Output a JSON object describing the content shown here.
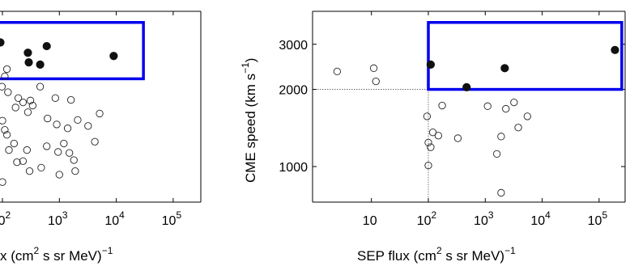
{
  "chart_data": [
    {
      "type": "scatter",
      "title": "",
      "xscale": "log",
      "yscale": "log",
      "xlabel_parts": [
        "x  (cm",
        "2",
        " s sr MeV)",
        "−1"
      ],
      "ylabel": "",
      "xticks": [
        {
          "base": "10",
          "exp": "2"
        },
        {
          "base": "10",
          "exp": "3"
        },
        {
          "base": "10",
          "exp": "4"
        },
        {
          "base": "10",
          "exp": "5"
        }
      ],
      "xlim": [
        85,
        260000
      ],
      "ylim": [
        700,
        3800
      ],
      "highlight_box": {
        "x": [
          85,
          30000
        ],
        "y": [
          2200,
          3650
        ],
        "color": "#0000ee"
      },
      "series": [
        {
          "marker": "filled",
          "points": [
            [
              92,
              3050
            ],
            [
              280,
              2780
            ],
            [
              290,
              2550
            ],
            [
              460,
              2500
            ],
            [
              600,
              2950
            ],
            [
              9000,
              2700
            ]
          ]
        },
        {
          "marker": "open",
          "points": [
            [
              98,
              2050
            ],
            [
              110,
              2250
            ],
            [
              120,
              2400
            ],
            [
              125,
              1950
            ],
            [
              170,
              1700
            ],
            [
              190,
              1850
            ],
            [
              230,
              1780
            ],
            [
              280,
              1630
            ],
            [
              310,
              1810
            ],
            [
              340,
              1730
            ],
            [
              460,
              2050
            ],
            [
              620,
              1540
            ],
            [
              850,
              1850
            ],
            [
              900,
              1460
            ],
            [
              1400,
              1410
            ],
            [
              1600,
              1820
            ],
            [
              2100,
              1520
            ],
            [
              5100,
              1610
            ],
            [
              3200,
              1440
            ],
            [
              100,
              1510
            ],
            [
              110,
              1390
            ],
            [
              120,
              1330
            ],
            [
              130,
              1160
            ],
            [
              160,
              1230
            ],
            [
              180,
              1040
            ],
            [
              230,
              1050
            ],
            [
              270,
              1160
            ],
            [
              300,
              960
            ],
            [
              480,
              990
            ],
            [
              600,
              1200
            ],
            [
              950,
              1140
            ],
            [
              1000,
              930
            ],
            [
              1200,
              1230
            ],
            [
              1500,
              1130
            ],
            [
              1800,
              1060
            ],
            [
              1900,
              960
            ],
            [
              4200,
              1250
            ],
            [
              100,
              870
            ]
          ]
        }
      ]
    },
    {
      "type": "scatter",
      "title": "",
      "xscale": "log",
      "yscale": "log",
      "xlabel_parts": [
        "SEP  flux  (cm",
        "2",
        " s sr MeV)",
        "−1"
      ],
      "ylabel_parts": [
        "CME  speed  (km s",
        "−1",
        ")"
      ],
      "xticks": [
        {
          "base": "10",
          "exp": ""
        },
        {
          "base": "10",
          "exp": "2"
        },
        {
          "base": "10",
          "exp": "3"
        },
        {
          "base": "10",
          "exp": "4"
        },
        {
          "base": "10",
          "exp": "5"
        }
      ],
      "yticks": [
        "1000",
        "2000",
        "3000"
      ],
      "xlim": [
        1,
        260000
      ],
      "ylim": [
        700,
        3800
      ],
      "reference_lines": {
        "x": 100,
        "y": 2000
      },
      "highlight_box": {
        "x": [
          100,
          250000
        ],
        "y": [
          2000,
          3650
        ],
        "color": "#0000ee"
      },
      "series": [
        {
          "marker": "filled",
          "points": [
            [
              110,
              2500
            ],
            [
              470,
              2040
            ],
            [
              2200,
              2420
            ],
            [
              190000,
              2850
            ]
          ]
        },
        {
          "marker": "open",
          "points": [
            [
              2.5,
              2350
            ],
            [
              11,
              2420
            ],
            [
              12,
              2150
            ],
            [
              95,
              1570
            ],
            [
              120,
              1360
            ],
            [
              150,
              1320
            ],
            [
              175,
              1730
            ],
            [
              330,
              1290
            ],
            [
              1100,
              1720
            ],
            [
              1600,
              1120
            ],
            [
              1900,
              1310
            ],
            [
              2300,
              1680
            ],
            [
              3200,
              1780
            ],
            [
              3800,
              1420
            ],
            [
              5500,
              1570
            ],
            [
              100,
              1240
            ],
            [
              110,
              1190
            ],
            [
              100,
              1010
            ],
            [
              1900,
              790
            ]
          ]
        }
      ]
    }
  ],
  "colors": {
    "box": "#0000ee",
    "marker": "#111111",
    "axis": "#000000"
  }
}
